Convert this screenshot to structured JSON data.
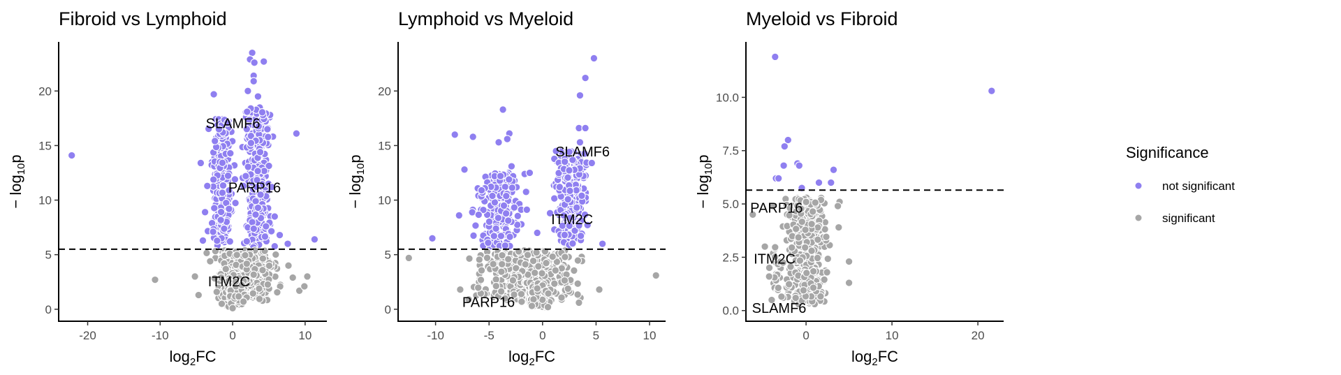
{
  "chart_data": [
    {
      "type": "scatter",
      "title": "Fibroid vs Lymphoid",
      "xlabel": "log2FC",
      "ylabel": "-log10p",
      "xlim": [
        -24,
        13
      ],
      "ylim": [
        -1.1,
        24.5
      ],
      "xticks": [
        -20,
        -10,
        0,
        10
      ],
      "yticks": [
        0,
        5,
        10,
        15,
        20
      ],
      "ytick_labels": [
        "0",
        "5",
        "10",
        "15",
        "20"
      ],
      "threshold": 5.5,
      "series": [
        {
          "name": "not significant",
          "color": "#8f7ff0",
          "points": [
            [
              -22.2,
              14.1
            ],
            [
              -2.6,
              19.7
            ],
            [
              2.7,
              23.5
            ],
            [
              2.4,
              22.9
            ],
            [
              4.3,
              22.7
            ],
            [
              3.0,
              22.6
            ],
            [
              2.9,
              21.4
            ],
            [
              2.9,
              20.9
            ],
            [
              2.1,
              20.0
            ],
            [
              3.5,
              19.5
            ],
            [
              2.5,
              18.4
            ],
            [
              2.0,
              18.1
            ],
            [
              8.8,
              16.1
            ],
            [
              11.3,
              6.4
            ],
            [
              -4.4,
              13.4
            ],
            [
              -3.5,
              11.3
            ],
            [
              -3.8,
              8.9
            ],
            [
              -4.1,
              6.3
            ],
            [
              4.8,
              16.5
            ],
            [
              5.4,
              11.2
            ],
            [
              5.8,
              8.5
            ],
            [
              6.5,
              6.8
            ],
            [
              7.6,
              6.0
            ],
            [
              -1.9,
              16.5
            ],
            [
              1.8,
              12.2
            ],
            [
              3.8,
              14.4
            ],
            [
              -0.5,
              9.2
            ],
            [
              4.6,
              7.6
            ],
            [
              -2.7,
              7.1
            ],
            [
              3.5,
              9.3
            ]
          ],
          "clusters": [
            {
              "x": [
                -3.6,
                0.6
              ],
              "y": [
                5.6,
                17.5
              ],
              "n": 230,
              "seed": 11
            },
            {
              "x": [
                0.8,
                6.0
              ],
              "y": [
                5.6,
                18.5
              ],
              "n": 280,
              "seed": 12
            }
          ]
        },
        {
          "name": "significant",
          "color": "#a6a6a6",
          "points": [
            [
              -10.7,
              2.7
            ],
            [
              -5.2,
              3.0
            ],
            [
              -4.7,
              1.3
            ],
            [
              8.3,
              2.9
            ],
            [
              9.2,
              1.7
            ],
            [
              9.9,
              2.1
            ],
            [
              10.3,
              3.0
            ],
            [
              0.0,
              0.1
            ],
            [
              -1.5,
              0.5
            ],
            [
              1.5,
              0.7
            ],
            [
              7.7,
              4.0
            ],
            [
              -3.1,
              4.4
            ]
          ],
          "clusters": [
            {
              "x": [
                -4.0,
                7.5
              ],
              "y": [
                0.6,
                5.4
              ],
              "n": 360,
              "seed": 13
            },
            {
              "x": [
                -2.0,
                2.5
              ],
              "y": [
                0.2,
                2.6
              ],
              "n": 80,
              "seed": 14
            }
          ]
        }
      ],
      "annotations": [
        {
          "text": "SLAMF6",
          "x": -3.7,
          "y": 16.6
        },
        {
          "text": "PARP16",
          "x": -0.6,
          "y": 10.7
        },
        {
          "text": "ITM2C",
          "x": -3.4,
          "y": 2.1
        }
      ]
    },
    {
      "type": "scatter",
      "title": "Lymphoid vs Myeloid",
      "xlabel": "log2FC",
      "ylabel": "-log10p",
      "xlim": [
        -13.5,
        11.5
      ],
      "ylim": [
        -1.1,
        24.5
      ],
      "xticks": [
        -10,
        -5,
        0,
        5,
        10
      ],
      "yticks": [
        0,
        5,
        10,
        15,
        20
      ],
      "ytick_labels": [
        "0",
        "5",
        "10",
        "15",
        "20"
      ],
      "threshold": 5.5,
      "series": [
        {
          "name": "not significant",
          "color": "#8f7ff0",
          "points": [
            [
              4.8,
              23.0
            ],
            [
              4.0,
              21.2
            ],
            [
              3.5,
              19.6
            ],
            [
              -3.7,
              18.3
            ],
            [
              -8.2,
              16.0
            ],
            [
              -6.5,
              15.8
            ],
            [
              -3.1,
              16.1
            ],
            [
              -4.1,
              15.3
            ],
            [
              -3.3,
              15.6
            ],
            [
              3.4,
              16.6
            ],
            [
              4.0,
              16.6
            ],
            [
              3.5,
              15.3
            ],
            [
              -10.3,
              6.5
            ],
            [
              -7.3,
              12.8
            ],
            [
              -5.7,
              10.9
            ],
            [
              -1.2,
              12.5
            ],
            [
              -7.8,
              8.6
            ],
            [
              -2.9,
              13.1
            ],
            [
              5.6,
              6.0
            ],
            [
              4.6,
              13.4
            ],
            [
              0.7,
              8.8
            ],
            [
              -0.5,
              7.0
            ],
            [
              1.6,
              11.2
            ]
          ],
          "clusters": [
            {
              "x": [
                -7.0,
                -1.0
              ],
              "y": [
                5.7,
                12.5
              ],
              "n": 220,
              "seed": 21
            },
            {
              "x": [
                0.6,
                4.8
              ],
              "y": [
                5.7,
                14.5
              ],
              "n": 220,
              "seed": 22
            }
          ]
        },
        {
          "name": "significant",
          "color": "#a6a6a6",
          "points": [
            [
              -12.5,
              4.7
            ],
            [
              10.6,
              3.1
            ],
            [
              5.3,
              1.8
            ],
            [
              -7.7,
              1.8
            ],
            [
              -1.0,
              0.3
            ],
            [
              0.5,
              0.2
            ],
            [
              -6.9,
              0.9
            ],
            [
              3.4,
              0.6
            ]
          ],
          "clusters": [
            {
              "x": [
                -7.8,
                4.8
              ],
              "y": [
                0.8,
                5.4
              ],
              "n": 380,
              "seed": 23
            },
            {
              "x": [
                -2.5,
                1.5
              ],
              "y": [
                0.1,
                2.5
              ],
              "n": 90,
              "seed": 24
            }
          ]
        }
      ],
      "annotations": [
        {
          "text": "SLAMF6",
          "x": 1.2,
          "y": 14.0
        },
        {
          "text": "ITM2C",
          "x": 0.8,
          "y": 7.8
        },
        {
          "text": "PARP16",
          "x": -7.5,
          "y": 0.2
        }
      ]
    },
    {
      "type": "scatter",
      "title": "Myeloid vs Fibroid",
      "xlabel": "log2FC",
      "ylabel": "-log10p",
      "xlim": [
        -7,
        23
      ],
      "ylim": [
        -0.5,
        12.6
      ],
      "xticks": [
        0,
        10,
        20
      ],
      "yticks": [
        0,
        2.5,
        5,
        7.5,
        10
      ],
      "ytick_labels": [
        "0.0",
        "2.5",
        "5.0",
        "7.5",
        "10.0"
      ],
      "threshold": 5.65,
      "series": [
        {
          "name": "not significant",
          "color": "#8f7ff0",
          "points": [
            [
              -3.6,
              11.9
            ],
            [
              21.6,
              10.3
            ],
            [
              -2.1,
              8.0
            ],
            [
              -2.5,
              7.7
            ],
            [
              -1.0,
              6.9
            ],
            [
              -2.6,
              6.8
            ],
            [
              -0.8,
              6.8
            ],
            [
              3.2,
              6.6
            ],
            [
              -3.5,
              6.2
            ],
            [
              -3.2,
              6.2
            ],
            [
              1.5,
              6.0
            ],
            [
              2.9,
              6.0
            ],
            [
              -0.5,
              5.75
            ]
          ]
        },
        {
          "name": "significant",
          "color": "#a6a6a6",
          "points": [
            [
              -6.2,
              4.5
            ],
            [
              -4.8,
              3.0
            ],
            [
              -4.3,
              1.6
            ],
            [
              -4.0,
              0.5
            ],
            [
              3.9,
              5.1
            ],
            [
              3.7,
              4.9
            ],
            [
              5.0,
              2.3
            ],
            [
              5.0,
              1.3
            ],
            [
              3.8,
              3.9
            ],
            [
              -3.9,
              4.9
            ]
          ],
          "clusters": [
            {
              "x": [
                -3.0,
                3.2
              ],
              "y": [
                0.3,
                5.3
              ],
              "n": 420,
              "seed": 31
            },
            {
              "x": [
                -5.0,
                -2.0
              ],
              "y": [
                0.5,
                3.0
              ],
              "n": 25,
              "seed": 32
            }
          ]
        }
      ],
      "annotations": [
        {
          "text": "PARP16",
          "x": -6.5,
          "y": 4.6
        },
        {
          "text": "ITM2C",
          "x": -6.1,
          "y": 2.2
        },
        {
          "text": "SLAMF6",
          "x": -6.3,
          "y": -0.1
        }
      ]
    }
  ],
  "legend": {
    "title": "Significance",
    "items": [
      {
        "label": "not significant",
        "color": "#8f7ff0"
      },
      {
        "label": "significant",
        "color": "#a6a6a6"
      }
    ]
  }
}
